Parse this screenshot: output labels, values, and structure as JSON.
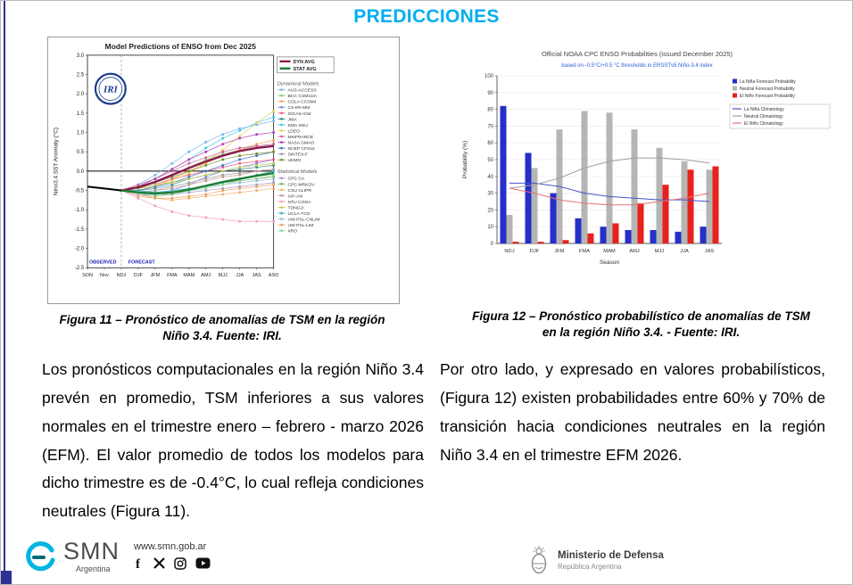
{
  "page": {
    "title": "PREDICCIONES",
    "accent_color": "#00aeef"
  },
  "figure11": {
    "caption_line1": "Figura 11 – Pronóstico de anomalías de TSM en la región",
    "caption_line2": "Niño 3.4. Fuente: IRI."
  },
  "figure12": {
    "caption_line1": "Figura 12 – Pronóstico probabilístico de anomalías de TSM",
    "caption_line2": "en la región Niño 3.4. - Fuente: IRI."
  },
  "paragraphs": {
    "left": "Los pronósticos computacionales en la región Niño 3.4 prevén en promedio, TSM inferiores a sus valores normales en el trimestre enero – febrero - marzo 2026 (EFM). El valor promedio de todos los modelos para dicho trimestre es de -0.4°C, lo cual refleja condiciones neutrales (Figura 11).",
    "right": "Por otro lado, y expresado en valores probabilísticos, (Figura 12) existen probabilidades entre 60% y 70% de transición hacia condiciones neutrales en la región Niño 3.4 en el trimestre EFM 2026."
  },
  "footer": {
    "smn": {
      "logo_text": "SMN",
      "logo_sub": "Argentina",
      "url": "www.smn.gob.ar",
      "social": [
        "facebook",
        "x",
        "instagram",
        "youtube"
      ]
    },
    "ministerio": {
      "line1": "Ministerio de Defensa",
      "line2": "República Argentina"
    }
  },
  "chart_data": [
    {
      "type": "line",
      "title": "Model Predictions of ENSO from Dec 2025",
      "ylabel": "Nino3.4 SST Anomaly (°C)",
      "ylim": [
        -2.5,
        3.0
      ],
      "x": [
        "SON",
        "Nov",
        "NDJ",
        "DJF",
        "JFM",
        "FMA",
        "MAM",
        "AMJ",
        "MJJ",
        "JJA",
        "JAS",
        "ASO"
      ],
      "forecast_start_index": 2,
      "annotations": [
        "OBSERVED",
        "FORECAST"
      ],
      "legend_titles": [
        "Dynamical Models",
        "Statistical Models"
      ],
      "logo_text": "IRI",
      "observed": {
        "name": "OBSERVED",
        "color": "#000000",
        "values": [
          -0.4,
          -0.45,
          -0.5
        ]
      },
      "dyn_avg": {
        "name": "DYN AVG",
        "color": "#8b1a4f",
        "values": [
          -0.5,
          -0.42,
          -0.28,
          -0.1,
          0.08,
          0.25,
          0.4,
          0.52,
          0.6,
          0.65
        ]
      },
      "stat_avg": {
        "name": "STAT AVG",
        "color": "#1e7d32",
        "values": [
          -0.5,
          -0.55,
          -0.58,
          -0.55,
          -0.48,
          -0.38,
          -0.28,
          -0.2,
          -0.12,
          -0.05
        ]
      },
      "dynamical_models": [
        {
          "name": "AUS-ACCESS",
          "color": "#7cb5ec",
          "values": [
            -0.5,
            -0.35,
            -0.1,
            0.2,
            0.5,
            0.75,
            0.95,
            1.1,
            1.2,
            1.3
          ]
        },
        {
          "name": "BCC CSM11m",
          "color": "#90c978",
          "values": [
            -0.5,
            -0.45,
            -0.3,
            -0.1,
            0.1,
            0.3,
            0.45,
            0.55,
            0.65,
            0.7
          ]
        },
        {
          "name": "COLA CCSM4",
          "color": "#f7a35c",
          "values": [
            -0.5,
            -0.5,
            -0.4,
            -0.2,
            0.0,
            0.2,
            0.4,
            0.55,
            0.7,
            0.8
          ]
        },
        {
          "name": "CS-IRI-MM",
          "color": "#8085e9",
          "values": [
            -0.5,
            -0.6,
            -0.6,
            -0.5,
            -0.35,
            -0.15,
            0.0,
            0.1,
            0.2,
            0.3
          ]
        },
        {
          "name": "IOCAS ICM",
          "color": "#f15c80",
          "values": [
            -0.5,
            -0.45,
            -0.35,
            -0.2,
            -0.1,
            0.0,
            0.1,
            0.2,
            0.25,
            0.3
          ]
        },
        {
          "name": "JMA",
          "color": "#2b908f",
          "values": [
            -0.5,
            -0.5,
            -0.45,
            -0.35,
            -0.2,
            -0.1,
            0.0,
            0.05,
            0.1,
            0.15
          ]
        },
        {
          "name": "KMA SNU",
          "color": "#44c8e8",
          "values": [
            -0.5,
            -0.4,
            -0.2,
            0.05,
            0.3,
            0.6,
            0.85,
            1.05,
            1.25,
            1.4
          ]
        },
        {
          "name": "LDEO",
          "color": "#e4d354",
          "values": [
            -0.5,
            -0.45,
            -0.4,
            -0.25,
            -0.05,
            0.25,
            0.55,
            0.9,
            1.25,
            1.55
          ]
        },
        {
          "name": "MetFRANCE",
          "color": "#d4609f",
          "values": [
            -0.5,
            -0.35,
            -0.2,
            0.0,
            0.2,
            0.35,
            0.5,
            0.6,
            0.65,
            0.7
          ]
        },
        {
          "name": "NASA GMAO",
          "color": "#b23fb2",
          "values": [
            -0.5,
            -0.4,
            -0.2,
            0.05,
            0.3,
            0.5,
            0.7,
            0.85,
            0.95,
            1.0
          ]
        },
        {
          "name": "NCEP CFSv2",
          "color": "#3f74c9",
          "values": [
            -0.5,
            -0.5,
            -0.4,
            -0.3,
            -0.15,
            0.0,
            0.15,
            0.3,
            0.4,
            0.5
          ]
        },
        {
          "name": "SINTEX-F",
          "color": "#9a9a9a",
          "values": [
            -0.5,
            -0.55,
            -0.5,
            -0.4,
            -0.3,
            -0.2,
            -0.1,
            -0.05,
            0.0,
            0.05
          ]
        },
        {
          "name": "UKMO",
          "color": "#7a8b2f",
          "values": [
            -0.5,
            -0.4,
            -0.3,
            -0.15,
            0.0,
            0.15,
            0.3,
            0.4,
            0.45,
            0.5
          ]
        }
      ],
      "statistical_models": [
        {
          "name": "CPC CA",
          "color": "#9e9ac8",
          "values": [
            -0.5,
            -0.55,
            -0.6,
            -0.6,
            -0.55,
            -0.5,
            -0.45,
            -0.4,
            -0.35,
            -0.3
          ]
        },
        {
          "name": "CPC MRKOV",
          "color": "#74b266",
          "values": [
            -0.5,
            -0.6,
            -0.65,
            -0.6,
            -0.5,
            -0.4,
            -0.3,
            -0.25,
            -0.2,
            -0.15
          ]
        },
        {
          "name": "CSU CLIPR",
          "color": "#f0b070",
          "values": [
            -0.5,
            -0.6,
            -0.7,
            -0.75,
            -0.7,
            -0.65,
            -0.6,
            -0.55,
            -0.5,
            -0.45
          ]
        },
        {
          "name": "IAP-AN",
          "color": "#c49c94",
          "values": [
            -0.5,
            -0.55,
            -0.5,
            -0.45,
            -0.35,
            -0.25,
            -0.15,
            -0.1,
            0.0,
            0.05
          ]
        },
        {
          "name": "NTU CODA",
          "color": "#f2a0c0",
          "values": [
            -0.5,
            -0.7,
            -0.9,
            -1.05,
            -1.15,
            -1.2,
            -1.25,
            -1.3,
            -1.3,
            -1.3
          ]
        },
        {
          "name": "TONGJI",
          "color": "#c9c94e",
          "values": [
            -0.5,
            -0.45,
            -0.35,
            -0.3,
            -0.2,
            -0.1,
            0.0,
            0.1,
            0.15,
            0.2
          ]
        },
        {
          "name": "UCLA-TCD",
          "color": "#35b8c9",
          "values": [
            -0.5,
            -0.5,
            -0.55,
            -0.5,
            -0.45,
            -0.4,
            -0.3,
            -0.2,
            -0.1,
            0.0
          ]
        },
        {
          "name": "UW PSL-CNLIM",
          "color": "#a0b9e0",
          "values": [
            -0.5,
            -0.6,
            -0.6,
            -0.55,
            -0.5,
            -0.4,
            -0.35,
            -0.3,
            -0.25,
            -0.2
          ]
        },
        {
          "name": "UW PSL-LIM",
          "color": "#f0a060",
          "values": [
            -0.5,
            -0.65,
            -0.7,
            -0.7,
            -0.65,
            -0.6,
            -0.5,
            -0.45,
            -0.4,
            -0.35
          ]
        },
        {
          "name": "XRO",
          "color": "#8fd694",
          "values": [
            -0.5,
            -0.55,
            -0.6,
            -0.55,
            -0.5,
            -0.45,
            -0.35,
            -0.25,
            -0.2,
            -0.1
          ]
        }
      ]
    },
    {
      "type": "bar",
      "title": "Official NOAA CPC ENSO Probabilities (issued December 2025)",
      "subtitle": "based on -0.5°C/+0.5 °C thresholds in ERSSTv5 Niño-3.4 index",
      "xlabel": "Season",
      "ylabel": "Probability (%)",
      "ylim": [
        0,
        100
      ],
      "categories": [
        "NDJ",
        "DJF",
        "JFM",
        "FMA",
        "MAM",
        "AMJ",
        "MJJ",
        "JJA",
        "JAS"
      ],
      "series": [
        {
          "name": "La Niña Forecast Probability",
          "color": "#2430c8",
          "values": [
            82,
            54,
            30,
            15,
            10,
            8,
            8,
            7,
            10
          ]
        },
        {
          "name": "Neutral Forecast Probability",
          "color": "#b5b5b5",
          "values": [
            17,
            45,
            68,
            79,
            78,
            68,
            57,
            49,
            44
          ]
        },
        {
          "name": "El Niño Forecast Probability",
          "color": "#e8211d",
          "values": [
            1,
            1,
            2,
            6,
            12,
            24,
            35,
            44,
            46
          ]
        }
      ],
      "climatology": [
        {
          "name": "La Niña Climatology",
          "color": "#4455cc",
          "values": [
            36,
            36,
            34,
            30,
            28,
            27,
            26,
            26,
            25
          ]
        },
        {
          "name": "Neutral Climatology",
          "color": "#9e9e9e",
          "values": [
            33,
            35,
            39,
            45,
            49,
            51,
            51,
            50,
            48
          ]
        },
        {
          "name": "El Niño Climatology",
          "color": "#e57373",
          "values": [
            33,
            30,
            26,
            24,
            23,
            23,
            25,
            27,
            30
          ]
        }
      ]
    }
  ]
}
